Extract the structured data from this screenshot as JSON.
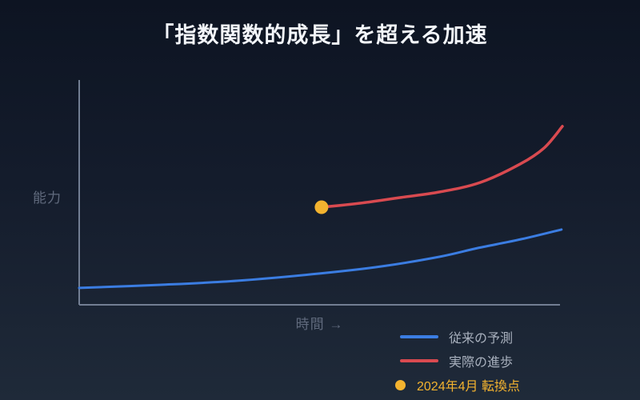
{
  "colors": {
    "background_top": "#0d1422",
    "background_bottom": "#1f2a39",
    "title_text": "#f3f6fa",
    "axis_line": "#727e93",
    "axis_label_text": "#606a7d",
    "legend_text": "#a8b0bd"
  },
  "chart_data": {
    "type": "line",
    "title": "「指数関数的成長」を超える加速",
    "xlabel": "時間 →",
    "ylabel": "能力",
    "x_range": [
      0,
      100
    ],
    "y_range": [
      0,
      100
    ],
    "grid": false,
    "axis_ticks": "none",
    "legend_position": "bottom-right",
    "series": [
      {
        "name": "従来の予測",
        "color": "#3b7de2",
        "x": [
          0,
          17,
          33,
          50,
          63,
          75,
          83,
          92,
          100.3
        ],
        "y": [
          7.5,
          8.9,
          10.7,
          13.9,
          17.1,
          21.4,
          25.3,
          29.2,
          33.5
        ]
      },
      {
        "name": "実際の進歩",
        "color": "#d94a50",
        "x": [
          50.4,
          58.4,
          66.7,
          75,
          83.4,
          91.7,
          96.7,
          100.5
        ],
        "y": [
          43.4,
          45.2,
          47.7,
          50.2,
          54.4,
          62.6,
          69.8,
          79.4
        ]
      }
    ],
    "annotations": [
      {
        "type": "point",
        "label": "2024年4月 転換点",
        "x": 50.4,
        "y": 43.4,
        "color": "#f3b32f"
      }
    ]
  }
}
